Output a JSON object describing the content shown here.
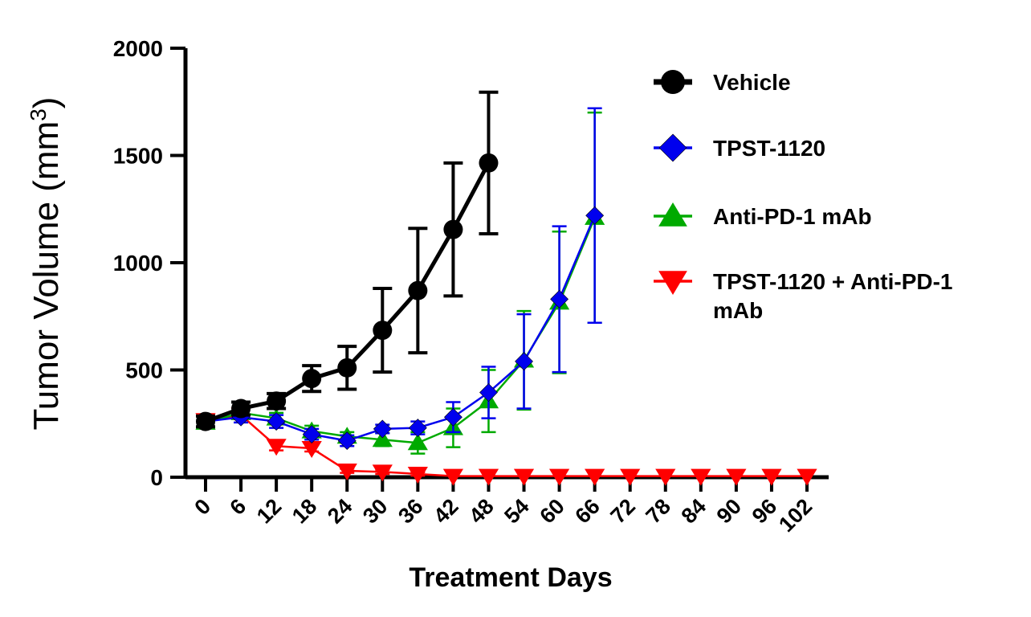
{
  "chart_data": {
    "type": "line",
    "title": "",
    "xlabel": "Treatment Days",
    "ylabel": "Tumor Volume (mm",
    "ylabel_sup": "3",
    "ylabel_suffix": ")",
    "xlim": [
      0,
      102
    ],
    "ylim": [
      0,
      2000
    ],
    "x_ticks": [
      0,
      6,
      12,
      18,
      24,
      30,
      36,
      42,
      48,
      54,
      60,
      66,
      72,
      78,
      84,
      90,
      96,
      102
    ],
    "x_tick_labels": [
      "0",
      "6",
      "12",
      "18",
      "24",
      "30",
      "36",
      "42",
      "48",
      "54",
      "60",
      "66",
      "72",
      "78",
      "84",
      "90",
      "96",
      "102"
    ],
    "y_ticks": [
      0,
      500,
      1000,
      1500,
      2000
    ],
    "y_tick_labels": [
      "0",
      "500",
      "1000",
      "1500",
      "2000"
    ],
    "grid": false,
    "legend_position": "right",
    "series": [
      {
        "name": "Vehicle",
        "color": "#000000",
        "marker": "circle",
        "x": [
          0,
          6,
          12,
          18,
          24,
          30,
          36,
          42,
          48
        ],
        "y": [
          260,
          320,
          355,
          460,
          510,
          685,
          870,
          1155,
          1465
        ],
        "err": [
          25,
          30,
          35,
          60,
          100,
          195,
          290,
          310,
          330
        ]
      },
      {
        "name": "TPST-1120",
        "color": "#0000ee",
        "marker": "diamond",
        "x": [
          0,
          6,
          12,
          18,
          24,
          30,
          36,
          42,
          48,
          54,
          60,
          66
        ],
        "y": [
          260,
          280,
          260,
          200,
          170,
          225,
          230,
          280,
          395,
          540,
          830,
          1220
        ],
        "err": [
          20,
          25,
          30,
          25,
          25,
          20,
          30,
          70,
          120,
          220,
          340,
          500
        ]
      },
      {
        "name": "Anti-PD-1 mAb",
        "color": "#00aa00",
        "marker": "triangle-up",
        "x": [
          0,
          6,
          12,
          18,
          24,
          30,
          36,
          42,
          48,
          54,
          60,
          66
        ],
        "y": [
          255,
          300,
          275,
          215,
          190,
          175,
          160,
          230,
          355,
          545,
          815,
          1210
        ],
        "err": [
          20,
          25,
          25,
          25,
          20,
          30,
          50,
          90,
          145,
          230,
          330,
          490
        ]
      },
      {
        "name": "TPST-1120 + Anti-PD-1 mAb",
        "legend_lines": [
          "TPST-1120 + Anti-PD-1",
          "mAb"
        ],
        "color": "#ff0000",
        "marker": "triangle-down",
        "x": [
          0,
          6,
          12,
          18,
          24,
          30,
          36,
          42,
          48,
          54,
          60,
          66,
          72,
          78,
          84,
          90,
          96,
          102
        ],
        "y": [
          265,
          290,
          145,
          135,
          30,
          25,
          15,
          5,
          5,
          5,
          5,
          5,
          5,
          5,
          5,
          5,
          5,
          5
        ],
        "err": [
          15,
          20,
          20,
          15,
          10,
          10,
          8,
          0,
          0,
          0,
          0,
          0,
          0,
          0,
          0,
          0,
          0,
          0
        ]
      }
    ]
  }
}
